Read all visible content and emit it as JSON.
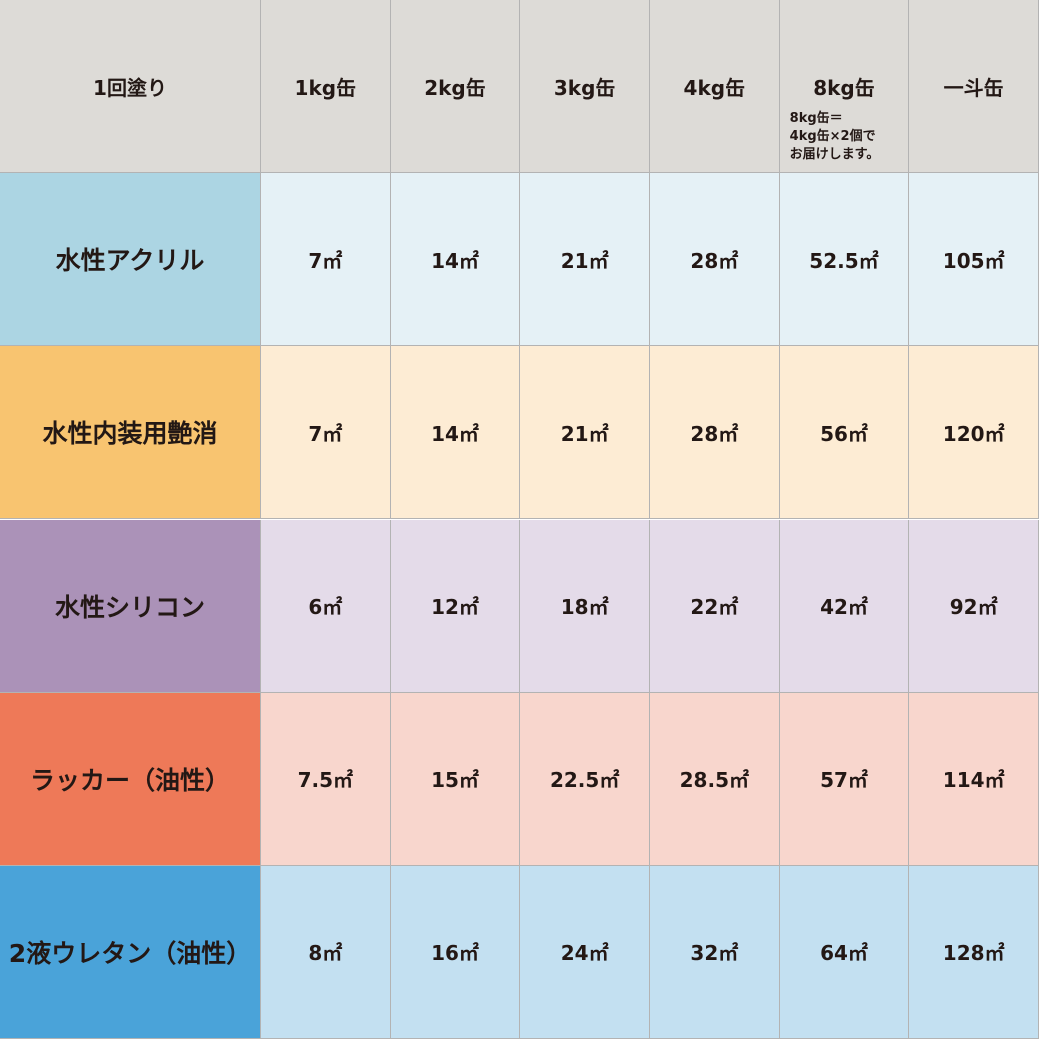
{
  "table": {
    "header": [
      "1回塗り",
      "1kg缶",
      "2kg缶",
      "3kg缶",
      "4kg缶",
      "8kg缶",
      "一斗缶"
    ],
    "note": [
      "8kg缶＝",
      "4kg缶×2個で",
      "お届けします。"
    ],
    "rows": [
      {
        "label": "水性アクリル",
        "label_color": "#acd5e3",
        "cell_color": "#e5f1f6",
        "cells": [
          "7㎡",
          "14㎡",
          "21㎡",
          "28㎡",
          "52.5㎡",
          "105㎡"
        ]
      },
      {
        "label": "水性内装用艶消",
        "label_color": "#f8c470",
        "cell_color": "#fdecd4",
        "cells": [
          "7㎡",
          "14㎡",
          "21㎡",
          "28㎡",
          "56㎡",
          "120㎡"
        ]
      },
      {
        "label": "水性シリコン",
        "label_color": "#ab92b8",
        "cell_color": "#e4dbe9",
        "cells": [
          "6㎡",
          "12㎡",
          "18㎡",
          "22㎡",
          "42㎡",
          "92㎡"
        ]
      },
      {
        "label": "ラッカー（油性）",
        "label_color": "#ee7958",
        "cell_color": "#f8d6cd",
        "cells": [
          "7.5㎡",
          "15㎡",
          "22.5㎡",
          "28.5㎡",
          "57㎡",
          "114㎡"
        ]
      },
      {
        "label": "2液ウレタン（油性）",
        "label_color": "#4aa3d9",
        "cell_color": "#c3e0f1",
        "cells": [
          "8㎡",
          "16㎡",
          "24㎡",
          "32㎡",
          "64㎡",
          "128㎡"
        ]
      }
    ]
  }
}
